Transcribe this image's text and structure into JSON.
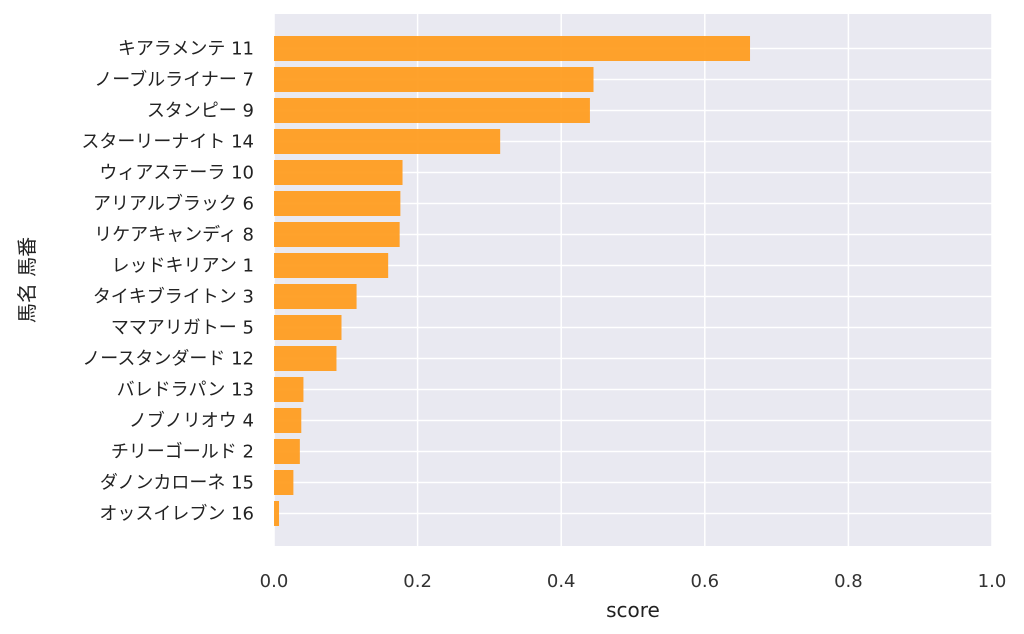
{
  "chart_data": {
    "type": "bar",
    "orientation": "horizontal",
    "title": "",
    "xlabel": "score",
    "ylabel": "馬名 馬番",
    "xlim": [
      0.0,
      1.0
    ],
    "xticks": [
      "0.0",
      "0.2",
      "0.4",
      "0.6",
      "0.8",
      "1.0"
    ],
    "grid": true,
    "legend": "none",
    "categories": [
      "キアラメンテ 11",
      "ノーブルライナー 7",
      "スタンピー 9",
      "スターリーナイト 14",
      "ウィアステーラ 10",
      "アリアルブラック 6",
      "リケアキャンディ 8",
      "レッドキリアン 1",
      "タイキブライトン 3",
      "ママアリガトー 5",
      "ノースタンダード 12",
      "バレドラパン 13",
      "ノブノリオウ 4",
      "チリーゴールド 2",
      "ダノンカローネ 15",
      "オッスイレブン 16"
    ],
    "values": [
      0.663,
      0.445,
      0.44,
      0.315,
      0.179,
      0.176,
      0.175,
      0.159,
      0.115,
      0.094,
      0.087,
      0.041,
      0.038,
      0.036,
      0.027,
      0.007
    ],
    "colors": {
      "bar": "#ff9a1a",
      "plot_background": "#e9e9f1",
      "grid": "#ffffff"
    }
  }
}
